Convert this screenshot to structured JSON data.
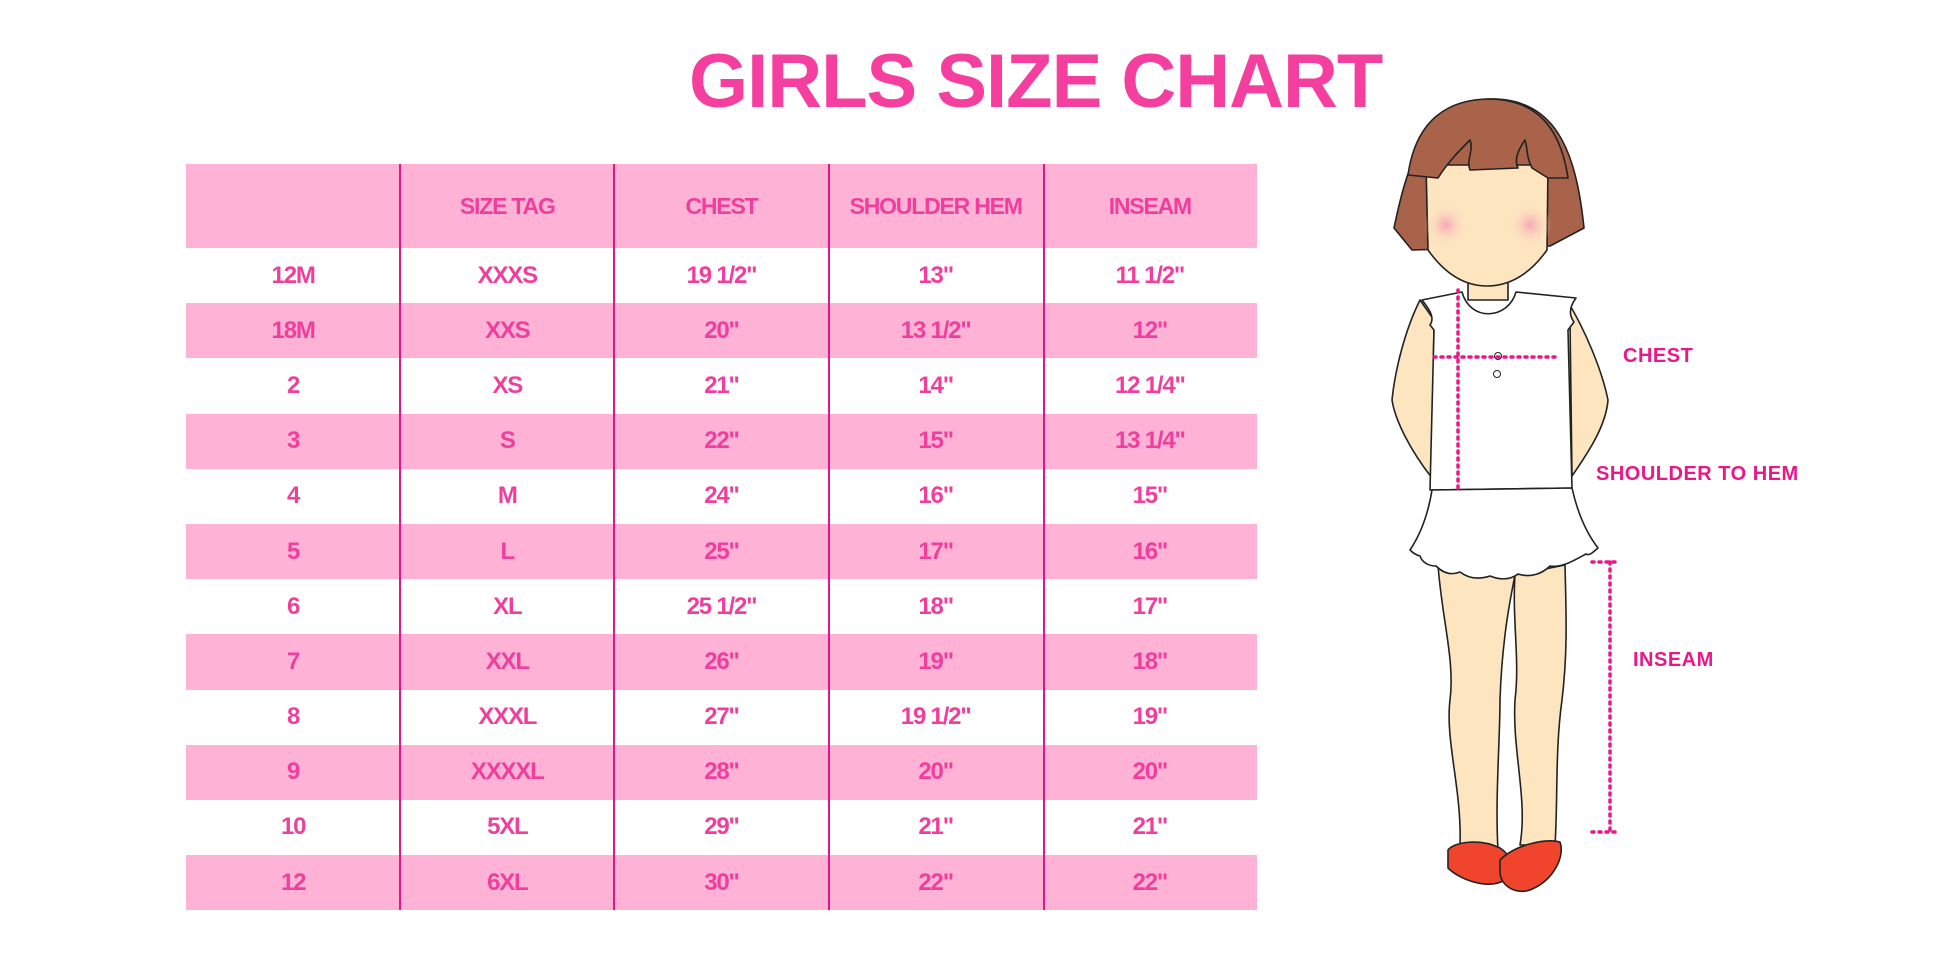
{
  "title": "GIRLS SIZE CHART",
  "colors": {
    "accent": "#f43f9f",
    "row_pink": "#fdb2d6",
    "divider": "#e0168a",
    "hair": "#a8634a",
    "skin": "#fde5c0",
    "shoes": "#f0442c"
  },
  "table": {
    "headers": [
      "",
      "SIZE TAG",
      "CHEST",
      "SHOULDER HEM",
      "INSEAM"
    ],
    "rows": [
      [
        "12M",
        "XXXS",
        "19 1/2\"",
        "13\"",
        "11 1/2\""
      ],
      [
        "18M",
        "XXS",
        "20\"",
        "13 1/2\"",
        "12\""
      ],
      [
        "2",
        "XS",
        "21\"",
        "14\"",
        "12 1/4\""
      ],
      [
        "3",
        "S",
        "22\"",
        "15\"",
        "13 1/4\""
      ],
      [
        "4",
        "M",
        "24\"",
        "16\"",
        "15\""
      ],
      [
        "5",
        "L",
        "25\"",
        "17\"",
        "16\""
      ],
      [
        "6",
        "XL",
        "25 1/2\"",
        "18\"",
        "17\""
      ],
      [
        "7",
        "XXL",
        "26\"",
        "19\"",
        "18\""
      ],
      [
        "8",
        "XXXL",
        "27\"",
        "19 1/2\"",
        "19\""
      ],
      [
        "9",
        "XXXXL",
        "28\"",
        "20\"",
        "20\""
      ],
      [
        "10",
        "5XL",
        "29\"",
        "21\"",
        "21\""
      ],
      [
        "12",
        "6XL",
        "30\"",
        "22\"",
        "22\""
      ]
    ]
  },
  "figure": {
    "chest_label": "CHEST",
    "shoulder_label": "SHOULDER TO HEM",
    "inseam_label": "INSEAM"
  }
}
